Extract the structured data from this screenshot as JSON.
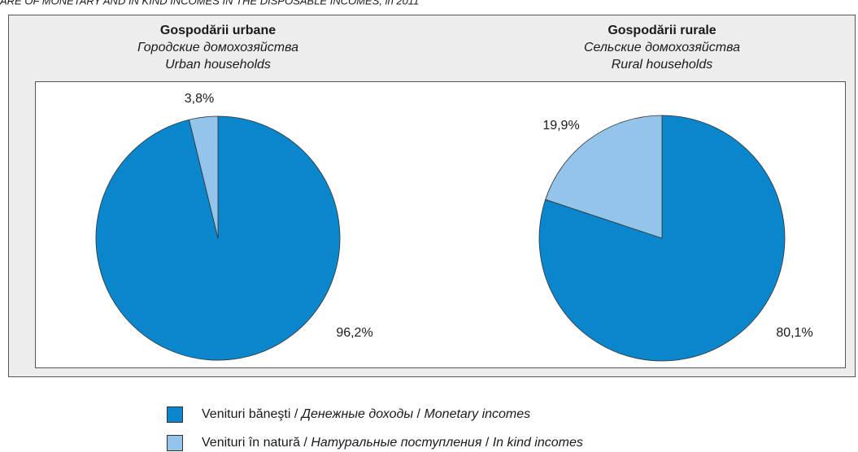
{
  "title": "ARE OF MONETARY AND IN KIND INCOMES IN THE DISPOSABLE INCOMES, in 2011",
  "chart_data": [
    {
      "type": "pie",
      "title": "Gospodării urbane",
      "subtitle": [
        "Городские домохозяйства",
        "Urban households"
      ],
      "values": [
        96.2,
        3.8
      ],
      "value_labels": [
        "96,2%",
        "3,8%"
      ],
      "colors": [
        "#0a86cd",
        "#93c5ea"
      ]
    },
    {
      "type": "pie",
      "title": "Gospodării rurale",
      "subtitle": [
        "Сельские домохозяйства",
        "Rural households"
      ],
      "values": [
        80.1,
        19.9
      ],
      "value_labels": [
        "80,1%",
        "19,9%"
      ],
      "colors": [
        "#0a86cd",
        "#93c5ea"
      ]
    }
  ],
  "legend": {
    "separator": " / ",
    "items": [
      {
        "parts": [
          "Venituri băneşti",
          "Денежные доходы",
          "Monetary incomes"
        ],
        "color": "#0a86cd"
      },
      {
        "parts": [
          "Venituri în natură",
          "Натуральные поступления",
          "In kind incomes"
        ],
        "color": "#93c5ea"
      }
    ]
  }
}
